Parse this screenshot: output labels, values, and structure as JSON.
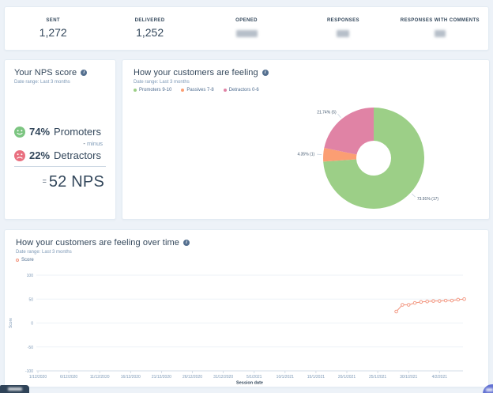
{
  "stats_bar": {
    "items": [
      {
        "label": "SENT",
        "value": "1,272",
        "redacted": false
      },
      {
        "label": "DELIVERED",
        "value": "1,252",
        "redacted": false
      },
      {
        "label": "OPENED",
        "value": "",
        "redacted": true
      },
      {
        "label": "RESPONSES",
        "value": "",
        "redacted": true
      },
      {
        "label": "RESPONSES WITH COMMENTS",
        "value": "",
        "redacted": true
      }
    ]
  },
  "icons": {
    "info_glyph": "i"
  },
  "nps_card": {
    "title": "Your NPS score",
    "date_range": "Date range: Last 3 months",
    "promoters": {
      "pct": "74%",
      "label": "Promoters",
      "color": "#7cc581"
    },
    "minus_symbol": "-",
    "minus_word": "minus",
    "detractors": {
      "pct": "22%",
      "label": "Detractors",
      "color": "#e97080"
    },
    "result": {
      "symbol": "=",
      "text": "52 NPS"
    }
  },
  "feeling_card": {
    "title": "How your customers are feeling",
    "date_range": "Date range: Last 3 months",
    "legend": [
      {
        "label": "Promoters 9-10"
      },
      {
        "label": "Passives 7-8"
      },
      {
        "label": "Detractors 0-6"
      }
    ]
  },
  "time_card": {
    "title": "How your customers are feeling over time",
    "date_range": "Date range: Last 3 months",
    "legend": [
      {
        "label": "Score"
      }
    ]
  },
  "chart_data": [
    {
      "type": "pie",
      "donut": true,
      "title": "How your customers are feeling",
      "start": "top",
      "direction": "clockwise",
      "label_format": "{pct}% ({count})",
      "slices": [
        {
          "label": "Promoters 9-10",
          "pct": 73.91,
          "count": 17,
          "color": "#9ccf87"
        },
        {
          "label": "Passives 7-8",
          "pct": 4.35,
          "count": 1,
          "color": "#fb9e73"
        },
        {
          "label": "Detractors 0-6",
          "pct": 21.74,
          "count": 5,
          "color": "#e083a5"
        }
      ]
    },
    {
      "type": "line",
      "title": "How your customers are feeling over time",
      "xlabel": "Session date",
      "ylabel": "Score",
      "ylim": [
        -100,
        100
      ],
      "y_ticks": [
        100,
        50,
        0,
        -50,
        -100
      ],
      "x_ticks": [
        "1/12/2020",
        "6/12/2020",
        "11/12/2020",
        "16/12/2020",
        "21/12/2020",
        "26/12/2020",
        "31/12/2020",
        "5/1/2021",
        "10/1/2021",
        "15/1/2021",
        "20/1/2021",
        "25/1/2021",
        "30/1/2021",
        "4/2/2021"
      ],
      "x_days_per_tick": 5,
      "grid": true,
      "legend_position": "top-left",
      "series": [
        {
          "name": "Score",
          "color": "#f2937c",
          "points": [
            {
              "date": "28/1/2021",
              "score": 24
            },
            {
              "date": "29/1/2021",
              "score": 38
            },
            {
              "date": "30/1/2021",
              "score": 38
            },
            {
              "date": "31/1/2021",
              "score": 42
            },
            {
              "date": "1/2/2021",
              "score": 44
            },
            {
              "date": "2/2/2021",
              "score": 45
            },
            {
              "date": "3/2/2021",
              "score": 46
            },
            {
              "date": "4/2/2021",
              "score": 46
            },
            {
              "date": "5/2/2021",
              "score": 47
            },
            {
              "date": "6/2/2021",
              "score": 47
            },
            {
              "date": "7/2/2021",
              "score": 49
            },
            {
              "date": "8/2/2021",
              "score": 50
            }
          ]
        }
      ]
    }
  ]
}
